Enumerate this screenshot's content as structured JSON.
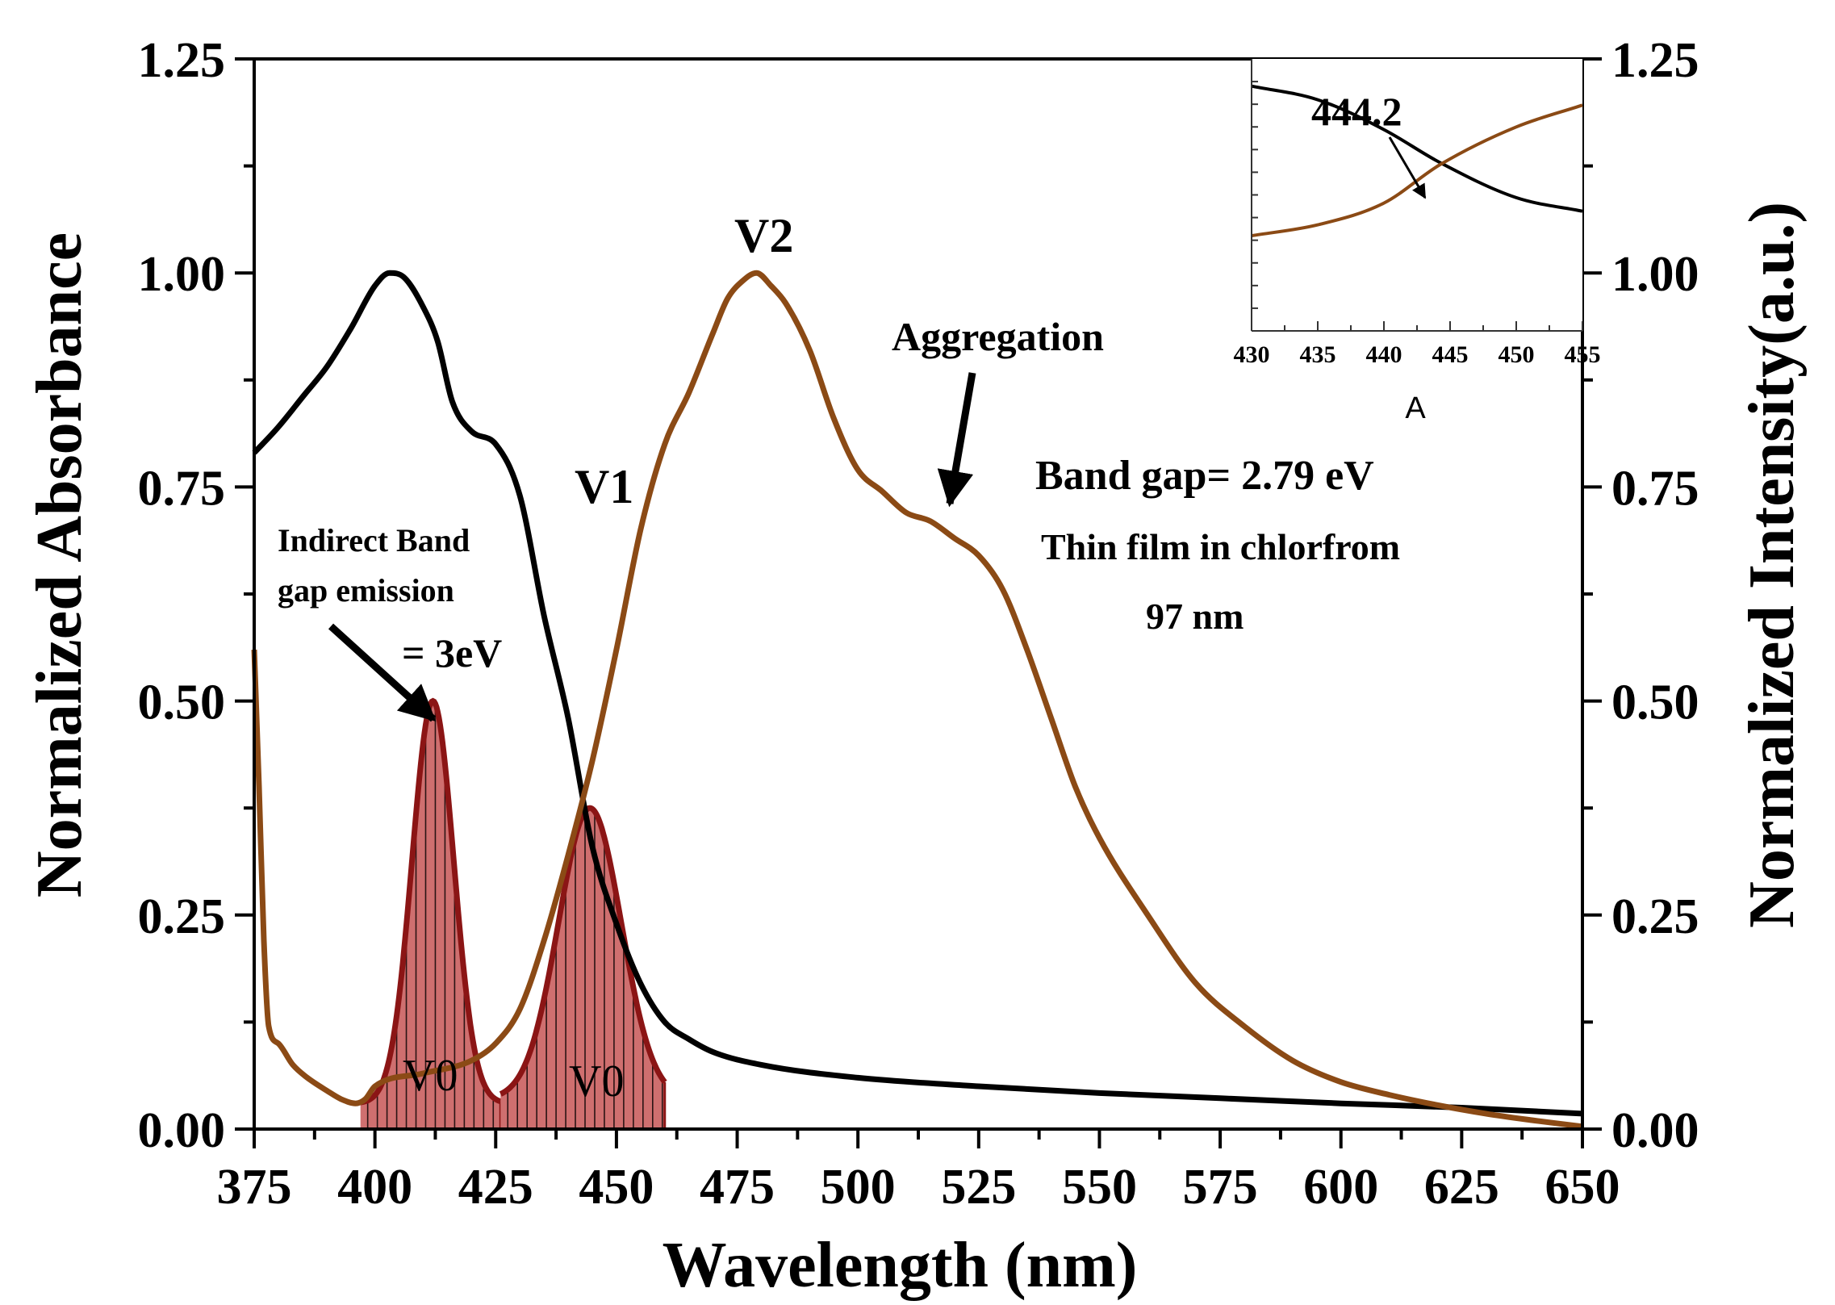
{
  "chart_data": {
    "type": "line",
    "x_range": [
      375,
      650
    ],
    "xlabel": "Wavelength (nm)",
    "ylabel_left": "Normalized Absorbance",
    "ylabel_right": "Normalized Intensity(a.u.)",
    "ylim_left": [
      0,
      1.25
    ],
    "ylim_right": [
      0,
      1.25
    ],
    "x_ticks": [
      375,
      400,
      425,
      450,
      475,
      500,
      525,
      550,
      575,
      600,
      625,
      650
    ],
    "x_tick_labels": [
      "375",
      "400",
      "425",
      "450",
      "475",
      "500",
      "525",
      "550",
      "575",
      "600",
      "625",
      "650"
    ],
    "y_ticks": [
      0,
      0.25,
      0.5,
      0.75,
      1.0,
      1.25
    ],
    "y_tick_labels": [
      "0.00",
      "0.25",
      "0.50",
      "0.75",
      "1.00",
      "1.25"
    ],
    "colors": {
      "absorbance": "#000000",
      "emission": "#8b4a15",
      "fill": "#cf6f6f",
      "fill_outline": "#8b1515",
      "hatch": "#2a1414"
    },
    "series": [
      {
        "name": "Absorbance",
        "x": [
          375,
          380,
          385,
          390,
          395,
          400,
          403,
          406,
          410,
          413,
          416,
          420,
          425,
          430,
          435,
          440,
          445,
          450,
          455,
          460,
          465,
          470,
          480,
          500,
          525,
          550,
          575,
          600,
          625,
          650
        ],
        "y": [
          0.79,
          0.82,
          0.855,
          0.89,
          0.935,
          0.985,
          1.0,
          0.995,
          0.96,
          0.92,
          0.85,
          0.815,
          0.8,
          0.74,
          0.6,
          0.48,
          0.33,
          0.24,
          0.17,
          0.125,
          0.105,
          0.09,
          0.075,
          0.06,
          0.05,
          0.042,
          0.036,
          0.03,
          0.025,
          0.018
        ]
      },
      {
        "name": "Emission",
        "x": [
          375,
          376,
          377,
          378,
          380,
          383,
          386,
          390,
          393,
          396,
          398,
          400,
          410,
          420,
          425,
          430,
          435,
          440,
          445,
          450,
          455,
          460,
          465,
          470,
          473,
          476,
          479,
          482,
          485,
          490,
          495,
          500,
          505,
          510,
          515,
          520,
          525,
          530,
          535,
          540,
          545,
          550,
          560,
          570,
          580,
          590,
          600,
          610,
          620,
          630,
          640,
          650
        ],
        "y": [
          0.56,
          0.4,
          0.22,
          0.12,
          0.1,
          0.075,
          0.06,
          0.045,
          0.035,
          0.03,
          0.035,
          0.05,
          0.065,
          0.08,
          0.1,
          0.14,
          0.22,
          0.32,
          0.43,
          0.56,
          0.7,
          0.8,
          0.86,
          0.93,
          0.97,
          0.99,
          1.0,
          0.985,
          0.965,
          0.91,
          0.83,
          0.77,
          0.745,
          0.72,
          0.71,
          0.69,
          0.67,
          0.63,
          0.56,
          0.48,
          0.4,
          0.34,
          0.25,
          0.17,
          0.12,
          0.08,
          0.055,
          0.04,
          0.028,
          0.018,
          0.01,
          0.003
        ]
      }
    ],
    "gaussian_peaks": [
      {
        "name": "V0 peak 1",
        "center": 412,
        "amplitude": 0.47,
        "sigma": 4.3,
        "baseline": 0.03,
        "x_start": 397,
        "x_end": 426
      },
      {
        "name": "V0 peak 2",
        "center": 444.5,
        "amplitude": 0.34,
        "sigma": 6.5,
        "baseline": 0.035,
        "x_start": 426,
        "x_end": 460
      }
    ],
    "inset": {
      "xlabel": "A",
      "x_range": [
        430,
        455
      ],
      "x_ticks": [
        430,
        435,
        440,
        445,
        450,
        455
      ],
      "x_tick_labels": [
        "430",
        "435",
        "440",
        "445",
        "450",
        "455"
      ],
      "crossing_x": 444.2,
      "crossing_label": "444.2",
      "absorbance": {
        "x": [
          430,
          435,
          440,
          444.2,
          450,
          455
        ],
        "y": [
          0.9,
          0.85,
          0.74,
          0.62,
          0.49,
          0.44
        ]
      },
      "emission": {
        "x": [
          430,
          435,
          440,
          444.2,
          450,
          455
        ],
        "y": [
          0.35,
          0.39,
          0.47,
          0.61,
          0.75,
          0.83
        ]
      }
    },
    "annotations": {
      "v2": "V2",
      "v1": "V1",
      "v0": "V0",
      "aggregation": "Aggregation",
      "band_gap": "Band gap= 2.79 eV",
      "film": "Thin film in chlorfrom",
      "thickness": "97 nm",
      "indirect_line1": "Indirect Band",
      "indirect_line2": "gap emission",
      "indirect_value": "= 3eV"
    }
  }
}
